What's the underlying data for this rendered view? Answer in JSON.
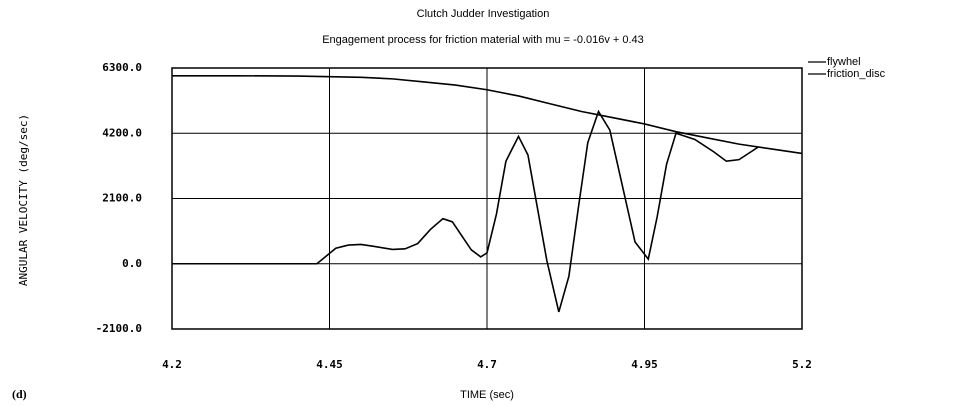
{
  "chart_data": {
    "type": "line",
    "title": "Clutch Judder Investigation",
    "subtitle": "Engagement process for friction material with  mu = -0.016v + 0.43",
    "x_label": "TIME (sec)",
    "y_label": "ANGULAR VELOCITY (deg/sec)",
    "annotation": "(d)",
    "xlim": [
      4.2,
      5.2
    ],
    "xticks": [
      4.2,
      4.45,
      4.7,
      4.95,
      5.2
    ],
    "ylim": [
      -2100,
      6300
    ],
    "yticks": [
      {
        "value": -2100,
        "label": "-2100.0"
      },
      {
        "value": 0,
        "label": "0.0"
      },
      {
        "value": 2100,
        "label": "2100.0"
      },
      {
        "value": 4200,
        "label": "4200.0"
      },
      {
        "value": 6300,
        "label": "6300.0"
      }
    ],
    "grid": true,
    "legend": "right",
    "series": [
      {
        "name": "flywhel",
        "color": "#000000",
        "x": [
          4.2,
          4.3,
          4.4,
          4.5,
          4.55,
          4.6,
          4.65,
          4.7,
          4.75,
          4.8,
          4.85,
          4.9,
          4.95,
          5.0,
          5.05,
          5.1,
          5.15,
          5.2
        ],
        "values": [
          6050,
          6050,
          6040,
          6000,
          5950,
          5850,
          5750,
          5600,
          5400,
          5150,
          4900,
          4700,
          4500,
          4250,
          4050,
          3850,
          3700,
          3550
        ]
      },
      {
        "name": "friction_disc",
        "color": "#000000",
        "x": [
          4.2,
          4.43,
          4.445,
          4.46,
          4.48,
          4.5,
          4.52,
          4.55,
          4.57,
          4.59,
          4.61,
          4.63,
          4.645,
          4.66,
          4.675,
          4.69,
          4.7,
          4.715,
          4.73,
          4.75,
          4.765,
          4.78,
          4.795,
          4.814,
          4.83,
          4.845,
          4.86,
          4.877,
          4.895,
          4.915,
          4.935,
          4.956,
          4.97,
          4.985,
          5.0,
          5.03,
          5.06,
          5.08,
          5.1,
          5.13
        ],
        "values": [
          0,
          0,
          250,
          500,
          600,
          620,
          560,
          460,
          480,
          650,
          1100,
          1450,
          1350,
          900,
          450,
          220,
          350,
          1600,
          3300,
          4100,
          3500,
          1800,
          100,
          -1550,
          -400,
          1800,
          3900,
          4900,
          4300,
          2500,
          700,
          150,
          1500,
          3200,
          4200,
          4000,
          3600,
          3300,
          3350,
          3750
        ]
      }
    ]
  }
}
